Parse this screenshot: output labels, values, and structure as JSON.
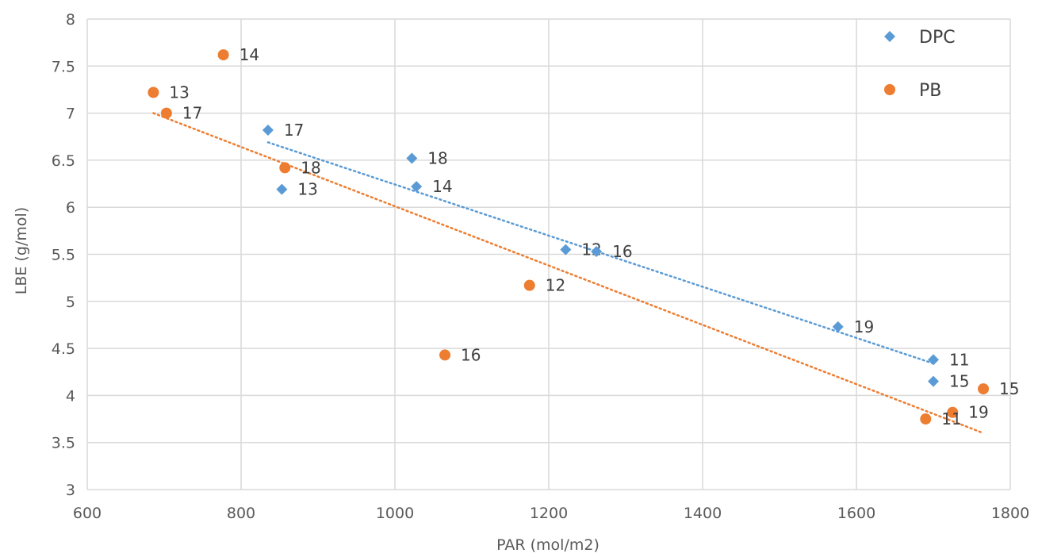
{
  "chart_data": {
    "type": "scatter",
    "title": "",
    "xlabel": "PAR (mol/m2)",
    "ylabel": "LBE (g/mol)",
    "xlim": [
      600,
      1800
    ],
    "ylim": [
      3,
      8
    ],
    "xticks": [
      600,
      800,
      1000,
      1200,
      1400,
      1600,
      1800
    ],
    "yticks": [
      3,
      3.5,
      4,
      4.5,
      5,
      5.5,
      6,
      6.5,
      7,
      7.5,
      8
    ],
    "yticklabels": [
      "3",
      "3.5",
      "4",
      "4.5",
      "5",
      "5.5",
      "6",
      "6.5",
      "7",
      "7.5",
      "8"
    ],
    "grid": true,
    "legend_position": "top-right",
    "series": [
      {
        "name": "DPC",
        "color": "#5b9bd5",
        "marker": "diamond",
        "points": [
          {
            "x": 835,
            "y": 6.82,
            "label": "17"
          },
          {
            "x": 853,
            "y": 6.19,
            "label": "13"
          },
          {
            "x": 1022,
            "y": 6.52,
            "label": "18"
          },
          {
            "x": 1028,
            "y": 6.22,
            "label": "14"
          },
          {
            "x": 1222,
            "y": 5.55,
            "label": "12"
          },
          {
            "x": 1262,
            "y": 5.53,
            "label": "16"
          },
          {
            "x": 1576,
            "y": 4.73,
            "label": "19"
          },
          {
            "x": 1700,
            "y": 4.38,
            "label": "11"
          },
          {
            "x": 1700,
            "y": 4.15,
            "label": "15"
          }
        ],
        "trendline": {
          "x": [
            835,
            1700
          ],
          "y": [
            6.69,
            4.34
          ]
        }
      },
      {
        "name": "PB",
        "color": "#ed7d31",
        "marker": "circle",
        "points": [
          {
            "x": 777,
            "y": 7.62,
            "label": "14"
          },
          {
            "x": 686,
            "y": 7.22,
            "label": "13"
          },
          {
            "x": 703,
            "y": 7.0,
            "label": "17"
          },
          {
            "x": 857,
            "y": 6.42,
            "label": "18"
          },
          {
            "x": 1175,
            "y": 5.17,
            "label": "12"
          },
          {
            "x": 1065,
            "y": 4.43,
            "label": "16"
          },
          {
            "x": 1765,
            "y": 4.07,
            "label": "15"
          },
          {
            "x": 1725,
            "y": 3.82,
            "label": "19"
          },
          {
            "x": 1690,
            "y": 3.75,
            "label": "11"
          }
        ],
        "trendline": {
          "x": [
            686,
            1765
          ],
          "y": [
            7.0,
            3.6
          ]
        }
      }
    ]
  }
}
